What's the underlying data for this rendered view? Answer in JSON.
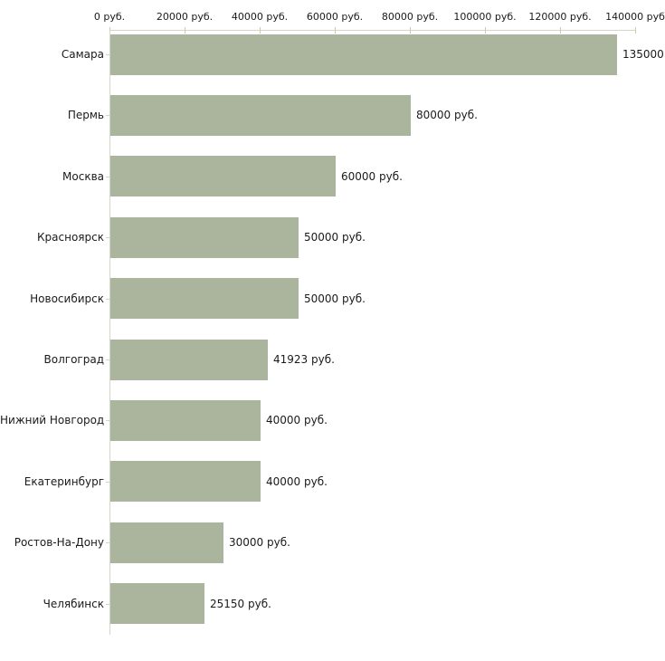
{
  "chart_data": {
    "type": "bar",
    "orientation": "horizontal",
    "title": "",
    "unit": "руб.",
    "xlim": [
      0,
      140000
    ],
    "x_tick_values": [
      0,
      20000,
      40000,
      60000,
      80000,
      100000,
      120000,
      140000
    ],
    "x_tick_labels": [
      "0 руб.",
      "20000 руб.",
      "40000 руб.",
      "60000 руб.",
      "80000 руб.",
      "100000 руб.",
      "120000 руб.",
      "140000 руб"
    ],
    "categories": [
      "Самара",
      "Пермь",
      "Москва",
      "Красноярск",
      "Новосибирск",
      "Волгоград",
      "Нижний Новгород",
      "Екатеринбург",
      "Ростов-На-Дону",
      "Челябинск"
    ],
    "values": [
      135000,
      80000,
      60000,
      50000,
      50000,
      41923,
      40000,
      40000,
      30000,
      25150
    ],
    "value_labels": [
      "135000",
      "80000 руб.",
      "60000 руб.",
      "50000 руб.",
      "50000 руб.",
      "41923 руб.",
      "40000 руб.",
      "40000 руб.",
      "30000 руб.",
      "25150 руб."
    ],
    "grid": false,
    "legend": false,
    "axis_position": "top",
    "colors": {
      "bar": "#abb49c",
      "axis_line": "#d6d6c8",
      "tick": "#cbcba4",
      "category_tick": "#d2d2d2",
      "text": "#1a1a1a",
      "background": "#ffffff"
    }
  }
}
